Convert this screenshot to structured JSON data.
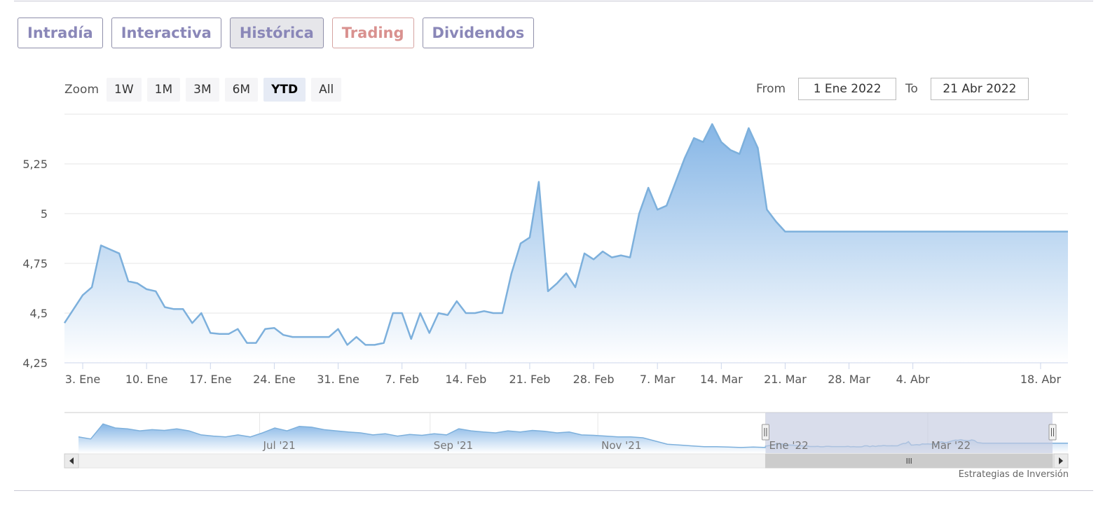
{
  "tabs": [
    {
      "label": "Intradía"
    },
    {
      "label": "Interactiva"
    },
    {
      "label": "Histórica"
    },
    {
      "label": "Trading"
    },
    {
      "label": "Dividendos"
    }
  ],
  "zoom": {
    "label": "Zoom",
    "buttons": [
      "1W",
      "1M",
      "3M",
      "6M",
      "YTD",
      "All"
    ],
    "selected": "YTD"
  },
  "range": {
    "from_label": "From",
    "from_value": "1 Ene 2022",
    "to_label": "To",
    "to_value": "21 Abr 2022"
  },
  "credit": "Estrategias de Inversión",
  "colors": {
    "line": "#7db0dc",
    "fill_top": "#86b6e6",
    "fill_bottom": "#ffffff",
    "navigator_mask": "#c4cbe0"
  },
  "chart_data": {
    "type": "area",
    "title": "",
    "xlabel": "",
    "ylabel": "",
    "ylim": [
      4.25,
      5.5
    ],
    "yticks": [
      4.25,
      4.5,
      4.75,
      5,
      5.25
    ],
    "ytick_labels": [
      "4,25",
      "4,5",
      "4,75",
      "5",
      "5,25"
    ],
    "xlim": [
      "2022-01-01",
      "2022-04-21"
    ],
    "xticks": [
      {
        "date": "2022-01-03",
        "label": "3. Ene"
      },
      {
        "date": "2022-01-10",
        "label": "10. Ene"
      },
      {
        "date": "2022-01-17",
        "label": "17. Ene"
      },
      {
        "date": "2022-01-24",
        "label": "24. Ene"
      },
      {
        "date": "2022-01-31",
        "label": "31. Ene"
      },
      {
        "date": "2022-02-07",
        "label": "7. Feb"
      },
      {
        "date": "2022-02-14",
        "label": "14. Feb"
      },
      {
        "date": "2022-02-21",
        "label": "21. Feb"
      },
      {
        "date": "2022-02-28",
        "label": "28. Feb"
      },
      {
        "date": "2022-03-07",
        "label": "7. Mar"
      },
      {
        "date": "2022-03-14",
        "label": "14. Mar"
      },
      {
        "date": "2022-03-21",
        "label": "21. Mar"
      },
      {
        "date": "2022-03-28",
        "label": "28. Mar"
      },
      {
        "date": "2022-04-04",
        "label": "4. Abr"
      },
      {
        "date": "2022-04-18",
        "label": "18. Abr"
      }
    ],
    "grid": true,
    "legend": "none",
    "series": [
      {
        "x": [
          "2022-01-01",
          "2022-01-03",
          "2022-01-04",
          "2022-01-05",
          "2022-01-06",
          "2022-01-07",
          "2022-01-08",
          "2022-01-09",
          "2022-01-10",
          "2022-01-11",
          "2022-01-12",
          "2022-01-13",
          "2022-01-14",
          "2022-01-15",
          "2022-01-16",
          "2022-01-17",
          "2022-01-18",
          "2022-01-19",
          "2022-01-20",
          "2022-01-21",
          "2022-01-22",
          "2022-01-23",
          "2022-01-24",
          "2022-01-25",
          "2022-01-26",
          "2022-01-27",
          "2022-01-28",
          "2022-01-29",
          "2022-01-30",
          "2022-01-31",
          "2022-02-01",
          "2022-02-02",
          "2022-02-03",
          "2022-02-04",
          "2022-02-05",
          "2022-02-06",
          "2022-02-07",
          "2022-02-08",
          "2022-02-09",
          "2022-02-10",
          "2022-02-11",
          "2022-02-12",
          "2022-02-13",
          "2022-02-14",
          "2022-02-15",
          "2022-02-16",
          "2022-02-17",
          "2022-02-18",
          "2022-02-19",
          "2022-02-20",
          "2022-02-21",
          "2022-02-22",
          "2022-02-23",
          "2022-02-24",
          "2022-02-25",
          "2022-02-26",
          "2022-02-27",
          "2022-02-28",
          "2022-03-01",
          "2022-03-02",
          "2022-03-03",
          "2022-03-04",
          "2022-03-05",
          "2022-03-06",
          "2022-03-07",
          "2022-03-08",
          "2022-03-09",
          "2022-03-10",
          "2022-03-11",
          "2022-03-12",
          "2022-03-13",
          "2022-03-14",
          "2022-03-15",
          "2022-03-16",
          "2022-03-17",
          "2022-03-18",
          "2022-03-19",
          "2022-03-20",
          "2022-03-21",
          "2022-03-22",
          "2022-03-23",
          "2022-03-24",
          "2022-03-25",
          "2022-03-26",
          "2022-03-27",
          "2022-03-28",
          "2022-03-29",
          "2022-03-30",
          "2022-03-31",
          "2022-04-01",
          "2022-04-02",
          "2022-04-03",
          "2022-04-04",
          "2022-04-05",
          "2022-04-06",
          "2022-04-07",
          "2022-04-08",
          "2022-04-09",
          "2022-04-10",
          "2022-04-11",
          "2022-04-12",
          "2022-04-13",
          "2022-04-14",
          "2022-04-15",
          "2022-04-16",
          "2022-04-17",
          "2022-04-18",
          "2022-04-19",
          "2022-04-20",
          "2022-04-21"
        ],
        "values": [
          4.45,
          4.59,
          4.63,
          4.84,
          4.82,
          4.8,
          4.66,
          4.65,
          4.62,
          4.61,
          4.53,
          4.52,
          4.52,
          4.45,
          4.5,
          4.4,
          4.395,
          4.395,
          4.42,
          4.35,
          4.35,
          4.42,
          4.425,
          4.39,
          4.38,
          4.38,
          4.38,
          4.38,
          4.38,
          4.42,
          4.34,
          4.38,
          4.34,
          4.34,
          4.35,
          4.5,
          4.5,
          4.37,
          4.5,
          4.4,
          4.5,
          4.49,
          4.56,
          4.5,
          4.5,
          4.51,
          4.5,
          4.5,
          4.7,
          4.85,
          4.88,
          5.16,
          4.61,
          4.65,
          4.7,
          4.63,
          4.8,
          4.77,
          4.81,
          4.78,
          4.79,
          4.78,
          5.0,
          5.13,
          5.02,
          5.04,
          5.16,
          5.28,
          5.38,
          5.36,
          5.45,
          5.36,
          5.32,
          5.3,
          5.43,
          5.33,
          5.02,
          4.96,
          4.91,
          4.91,
          4.91,
          4.91,
          4.91,
          4.91,
          4.91,
          4.91,
          4.91,
          4.91,
          4.91,
          4.91,
          4.91,
          4.91,
          4.91,
          4.91,
          4.91,
          4.91,
          4.91,
          4.91,
          4.91,
          4.91,
          4.91,
          4.91,
          4.91,
          4.91,
          4.91,
          4.91,
          4.91,
          4.91,
          4.91,
          4.91
        ]
      }
    ],
    "navigator": {
      "xticks": [
        {
          "date": "2021-07-01",
          "label": "Jul '21"
        },
        {
          "date": "2021-09-01",
          "label": "Sep '21"
        },
        {
          "date": "2021-11-01",
          "label": "Nov '21"
        },
        {
          "date": "2022-01-01",
          "label": "Ene '22"
        },
        {
          "date": "2022-03-01",
          "label": "Mar '22"
        }
      ],
      "xlim": [
        "2021-04-21",
        "2022-04-21"
      ],
      "selected_range": [
        "2022-01-01",
        "2022-04-21"
      ]
    }
  }
}
